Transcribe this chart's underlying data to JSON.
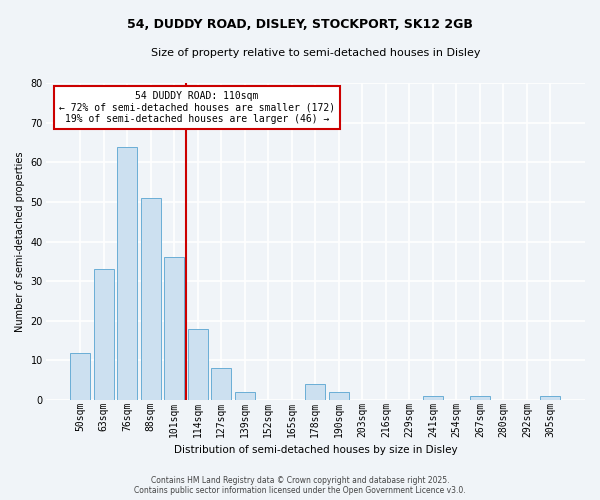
{
  "title_line1": "54, DUDDY ROAD, DISLEY, STOCKPORT, SK12 2GB",
  "title_line2": "Size of property relative to semi-detached houses in Disley",
  "xlabel": "Distribution of semi-detached houses by size in Disley",
  "ylabel": "Number of semi-detached properties",
  "categories": [
    "50sqm",
    "63sqm",
    "76sqm",
    "88sqm",
    "101sqm",
    "114sqm",
    "127sqm",
    "139sqm",
    "152sqm",
    "165sqm",
    "178sqm",
    "190sqm",
    "203sqm",
    "216sqm",
    "229sqm",
    "241sqm",
    "254sqm",
    "267sqm",
    "280sqm",
    "292sqm",
    "305sqm"
  ],
  "values": [
    12,
    33,
    64,
    51,
    36,
    18,
    8,
    2,
    0,
    0,
    4,
    2,
    0,
    0,
    0,
    1,
    0,
    1,
    0,
    0,
    1
  ],
  "bar_color": "#cce0f0",
  "bar_edge_color": "#6aaed6",
  "vline_color": "#cc0000",
  "vline_x": 4.5,
  "annotation_title": "54 DUDDY ROAD: 110sqm",
  "annotation_line1": "← 72% of semi-detached houses are smaller (172)",
  "annotation_line2": "19% of semi-detached houses are larger (46) →",
  "annotation_box_color": "#ffffff",
  "annotation_box_edge": "#cc0000",
  "ylim": [
    0,
    80
  ],
  "yticks": [
    0,
    10,
    20,
    30,
    40,
    50,
    60,
    70,
    80
  ],
  "footer_line1": "Contains HM Land Registry data © Crown copyright and database right 2025.",
  "footer_line2": "Contains public sector information licensed under the Open Government Licence v3.0.",
  "background_color": "#f0f4f8",
  "grid_color": "#ffffff",
  "title_fontsize": 9,
  "subtitle_fontsize": 8,
  "xlabel_fontsize": 7.5,
  "ylabel_fontsize": 7,
  "tick_fontsize": 7,
  "footer_fontsize": 5.5
}
